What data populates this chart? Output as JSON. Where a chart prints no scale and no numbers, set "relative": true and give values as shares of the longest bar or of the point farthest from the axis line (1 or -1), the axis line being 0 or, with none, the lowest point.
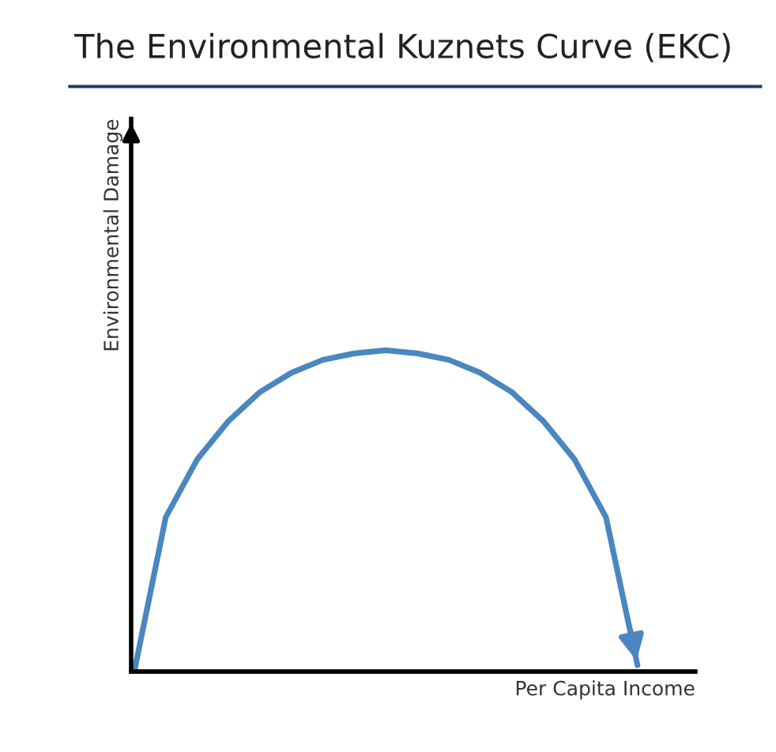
{
  "chart_data": {
    "type": "line",
    "title": "The Environmental Kuznets Curve (EKC)",
    "xlabel": "Per Capita Income",
    "ylabel": "Environmental Damage",
    "relative": true,
    "categories": [
      null,
      null,
      null,
      null,
      null,
      null,
      null,
      null,
      null,
      null,
      null,
      null,
      null,
      null,
      null,
      null,
      null
    ],
    "series": [
      {
        "color": "#4a86c0",
        "values": [
          0,
          0.48,
          0.66,
          0.78,
          0.87,
          0.93,
          0.97,
          0.99,
          1,
          0.99,
          0.97,
          0.93,
          0.87,
          0.78,
          0.66,
          0.48,
          0.02
        ]
      }
    ],
    "marker": "none",
    "line_style": "solid",
    "legend": false
  }
}
